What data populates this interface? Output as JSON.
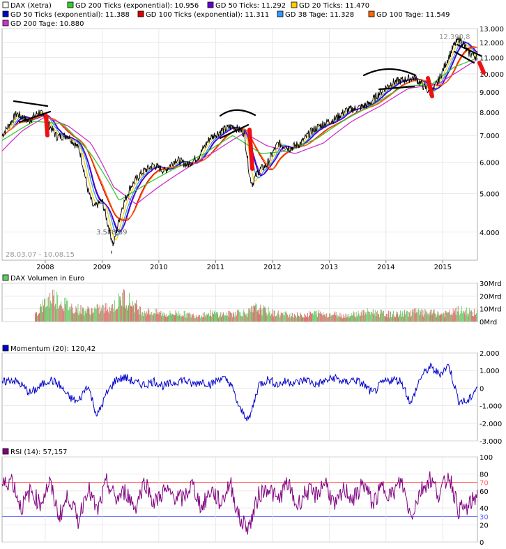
{
  "legend": {
    "main": [
      {
        "label": "DAX (Xetra)",
        "color": "#ffffff"
      },
      {
        "label": "GD 200 Ticks (exponential): 10.956",
        "color": "#33cc33"
      },
      {
        "label": "GD 50 Ticks: 11.292",
        "color": "#6600cc"
      },
      {
        "label": "GD 20 Ticks: 11.470",
        "color": "#ffcc00"
      },
      {
        "label": "GD 50 Ticks (exponential): 11.388",
        "color": "#0000cc"
      },
      {
        "label": "GD 100 Ticks (exponential): 11.311",
        "color": "#dd0000"
      },
      {
        "label": "GD 38 Tage: 11.328",
        "color": "#3399ff"
      },
      {
        "label": "GD 100 Tage: 11.549",
        "color": "#ff6600"
      },
      {
        "label": "GD 200 Tage: 10.880",
        "color": "#cc33cc"
      }
    ],
    "volume": {
      "label": "DAX Volumen in Euro",
      "color": "#66cc66"
    },
    "momentum": {
      "label": "Momentum (20): 120,42",
      "color": "#0000cc"
    },
    "rsi": {
      "label": "RSI (14): 57,157",
      "color": "#800080"
    }
  },
  "annotations": {
    "high": "12.390,8",
    "low": "3.588,89",
    "daterange": "28.03.07 - 10.08.15"
  },
  "colors": {
    "price": "#000000",
    "volume_up": "#66cc66",
    "volume_down": "#dd6666",
    "momentum": "#0000cc",
    "rsi": "#800080",
    "rsi_70": "#ff6666",
    "rsi_30": "#6666ff",
    "highlight": "#ee1111"
  },
  "chart_data": [
    {
      "type": "line",
      "series": [
        {
          "name": "DAX (Xetra)",
          "x": [
            2007.24,
            2007.5,
            2007.7,
            2007.9,
            2008.0,
            2008.2,
            2008.4,
            2008.6,
            2008.75,
            2008.85,
            2009.0,
            2009.1,
            2009.2,
            2009.35,
            2009.5,
            2009.7,
            2009.9,
            2010.1,
            2010.3,
            2010.5,
            2010.7,
            2010.9,
            2011.1,
            2011.3,
            2011.5,
            2011.6,
            2011.65,
            2011.75,
            2011.9,
            2012.1,
            2012.3,
            2012.5,
            2012.7,
            2012.9,
            2013.1,
            2013.3,
            2013.5,
            2013.7,
            2013.9,
            2014.1,
            2014.3,
            2014.5,
            2014.7,
            2014.8,
            2014.95,
            2015.1,
            2015.2,
            2015.3,
            2015.45,
            2015.61
          ],
          "values": [
            7000,
            7950,
            7600,
            8050,
            7700,
            6950,
            7000,
            6450,
            5100,
            4600,
            4800,
            4200,
            3700,
            4600,
            5200,
            5650,
            5900,
            5700,
            6100,
            5900,
            6200,
            6900,
            7200,
            7400,
            7100,
            5500,
            5300,
            5700,
            5900,
            6700,
            6500,
            6700,
            7200,
            7500,
            7700,
            8100,
            8200,
            8400,
            9000,
            9500,
            9650,
            9800,
            9200,
            8900,
            9800,
            11000,
            11800,
            12300,
            11300,
            11050
          ]
        },
        {
          "name": "GD 200 Tage: 10.880",
          "x": [
            2007.24,
            2007.6,
            2008.0,
            2008.4,
            2008.8,
            2009.2,
            2009.6,
            2010.0,
            2010.5,
            2011.0,
            2011.5,
            2011.9,
            2012.4,
            2012.9,
            2013.4,
            2013.9,
            2014.4,
            2014.9,
            2015.3,
            2015.61
          ],
          "values": [
            6400,
            7200,
            7800,
            7400,
            6700,
            5200,
            4700,
            5200,
            5800,
            6400,
            7100,
            6600,
            6300,
            6700,
            7600,
            8300,
            9200,
            9400,
            10200,
            10880
          ]
        },
        {
          "name": "GD 200 Ticks (exponential): 10.956",
          "x": [
            2007.24,
            2007.8,
            2008.3,
            2008.8,
            2009.3,
            2009.8,
            2010.3,
            2010.8,
            2011.3,
            2011.8,
            2012.3,
            2012.8,
            2013.3,
            2013.8,
            2014.3,
            2014.8,
            2015.2,
            2015.61
          ],
          "values": [
            6800,
            7600,
            7500,
            6300,
            4800,
            5300,
            5800,
            6300,
            7000,
            6300,
            6400,
            6900,
            7700,
            8400,
            9300,
            9400,
            10400,
            10956
          ]
        }
      ],
      "y_ticks": [
        "4.000",
        "5.000",
        "6.000",
        "7.000",
        "8.000",
        "9.000",
        "10.000",
        "11.000",
        "12.000",
        "13.000"
      ],
      "x_ticks": [
        "2008",
        "2009",
        "2010",
        "2011",
        "2012",
        "2013",
        "2014",
        "2015"
      ],
      "y_scale": "log",
      "ylim": [
        3400,
        13000
      ]
    },
    {
      "type": "bar",
      "series": [
        {
          "name": "DAX Volumen in Euro",
          "values": [
            6,
            14,
            21,
            16,
            12,
            10,
            9,
            10,
            11,
            13,
            20,
            15,
            9,
            8,
            7,
            6,
            7,
            6,
            5,
            6,
            7,
            6,
            6,
            8,
            7,
            11,
            9,
            7,
            6,
            6,
            5,
            6,
            7,
            6,
            6,
            5,
            6,
            7,
            8,
            7,
            6,
            6,
            7,
            8,
            7,
            7,
            6,
            7,
            9,
            8,
            7
          ]
        }
      ],
      "y_ticks": [
        "0Mrd",
        "10Mrd",
        "20Mrd",
        "30Mrd"
      ],
      "ylim": [
        0,
        30
      ]
    },
    {
      "type": "line",
      "series": [
        {
          "name": "Momentum (20): 120,42",
          "values": [
            300,
            500,
            200,
            -300,
            100,
            500,
            200,
            -500,
            -800,
            200,
            -1600,
            -300,
            500,
            600,
            300,
            200,
            400,
            100,
            300,
            500,
            200,
            400,
            200,
            600,
            300,
            -1200,
            -1800,
            200,
            500,
            200,
            400,
            300,
            500,
            200,
            400,
            600,
            300,
            500,
            200,
            -300,
            300,
            500,
            400,
            -900,
            600,
            1200,
            800,
            1300,
            -700,
            -800,
            120
          ]
        }
      ],
      "y_ticks": [
        "-3.000",
        "-2.000",
        "-1.000",
        "0",
        "1.000",
        "2.000"
      ],
      "ylim": [
        -3000,
        2000
      ]
    },
    {
      "type": "line",
      "series": [
        {
          "name": "RSI (14): 57,157",
          "values": [
            65,
            75,
            40,
            60,
            45,
            70,
            30,
            55,
            25,
            65,
            35,
            70,
            50,
            60,
            40,
            72,
            45,
            60,
            55,
            50,
            68,
            40,
            62,
            45,
            70,
            25,
            18,
            55,
            65,
            48,
            70,
            42,
            60,
            55,
            72,
            40,
            62,
            50,
            70,
            45,
            65,
            55,
            72,
            30,
            60,
            75,
            55,
            80,
            38,
            40,
            57
          ]
        }
      ],
      "y_ticks": [
        "0",
        "20",
        "30",
        "40",
        "60",
        "70",
        "80",
        "100"
      ],
      "ylim": [
        0,
        100
      ],
      "reference_lines": [
        70,
        30
      ]
    }
  ]
}
